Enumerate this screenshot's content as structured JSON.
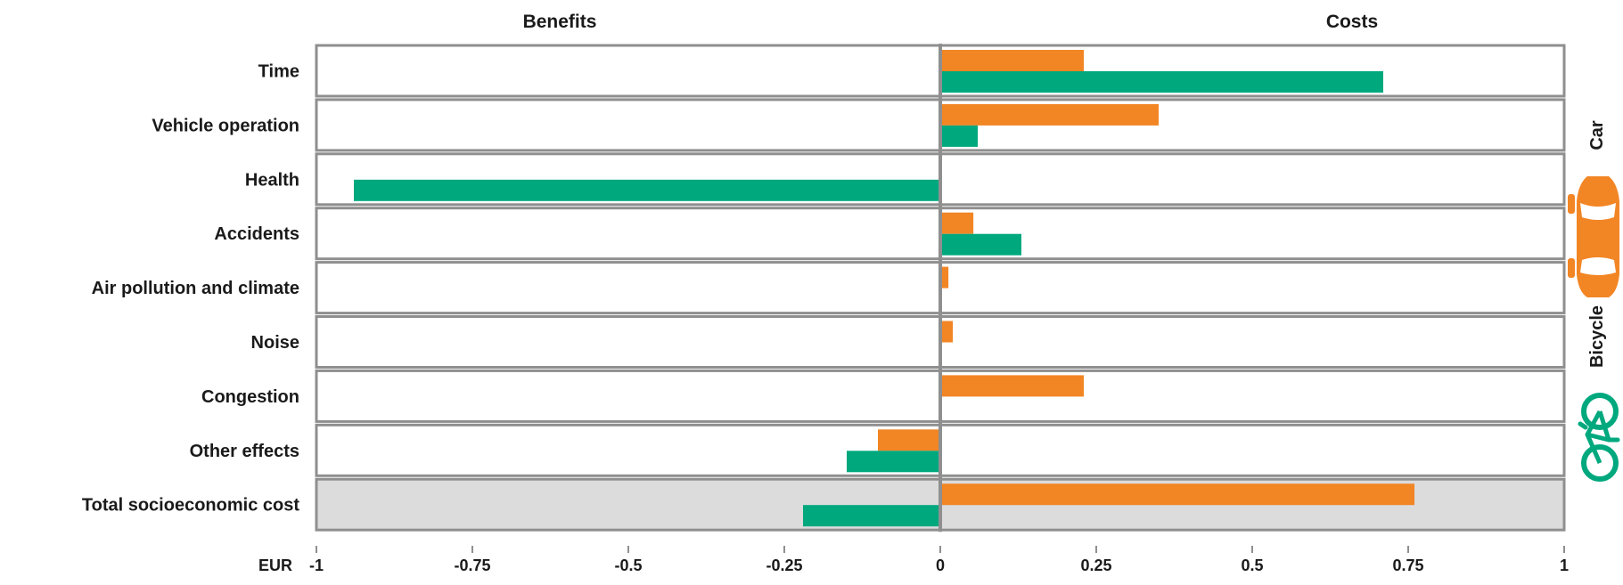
{
  "chart_data": {
    "type": "bar",
    "orientation": "horizontal",
    "header_left": "Benefits",
    "header_right": "Costs",
    "axis_unit": "EUR",
    "xlim": [
      -1,
      1
    ],
    "ticks": [
      {
        "value": -1,
        "label": "-1"
      },
      {
        "value": -0.75,
        "label": "-0.75"
      },
      {
        "value": -0.5,
        "label": "-0.5"
      },
      {
        "value": -0.25,
        "label": "-0.25"
      },
      {
        "value": 0,
        "label": "0"
      },
      {
        "value": 0.25,
        "label": "0.25"
      },
      {
        "value": 0.5,
        "label": "0.5"
      },
      {
        "value": 0.75,
        "label": "0.75"
      },
      {
        "value": 1,
        "label": "1"
      }
    ],
    "categories": [
      "Time",
      "Vehicle operation",
      "Health",
      "Accidents",
      "Air pollution and climate",
      "Noise",
      "Congestion",
      "Other effects",
      "Total socioeconomic cost"
    ],
    "highlighted_category": "Total socioeconomic cost",
    "series": [
      {
        "name": "Car",
        "color": "#f28524",
        "values": [
          0.23,
          0.35,
          null,
          0.053,
          0.013,
          0.02,
          0.23,
          -0.1,
          0.76
        ]
      },
      {
        "name": "Bicycle",
        "color": "#00a87e",
        "values": [
          0.71,
          0.06,
          -0.94,
          0.13,
          null,
          null,
          null,
          -0.15,
          -0.22
        ]
      }
    ],
    "legend_position": "right",
    "grid": false
  },
  "legend": [
    {
      "label": "Car",
      "icon": "car-icon",
      "color": "#f28524"
    },
    {
      "label": "Bicycle",
      "icon": "bicycle-icon",
      "color": "#00a87e"
    }
  ],
  "colors": {
    "frame": "#8f8f8f",
    "highlight_fill": "#dcdcdd",
    "zero_line": "#8f8f8f"
  }
}
